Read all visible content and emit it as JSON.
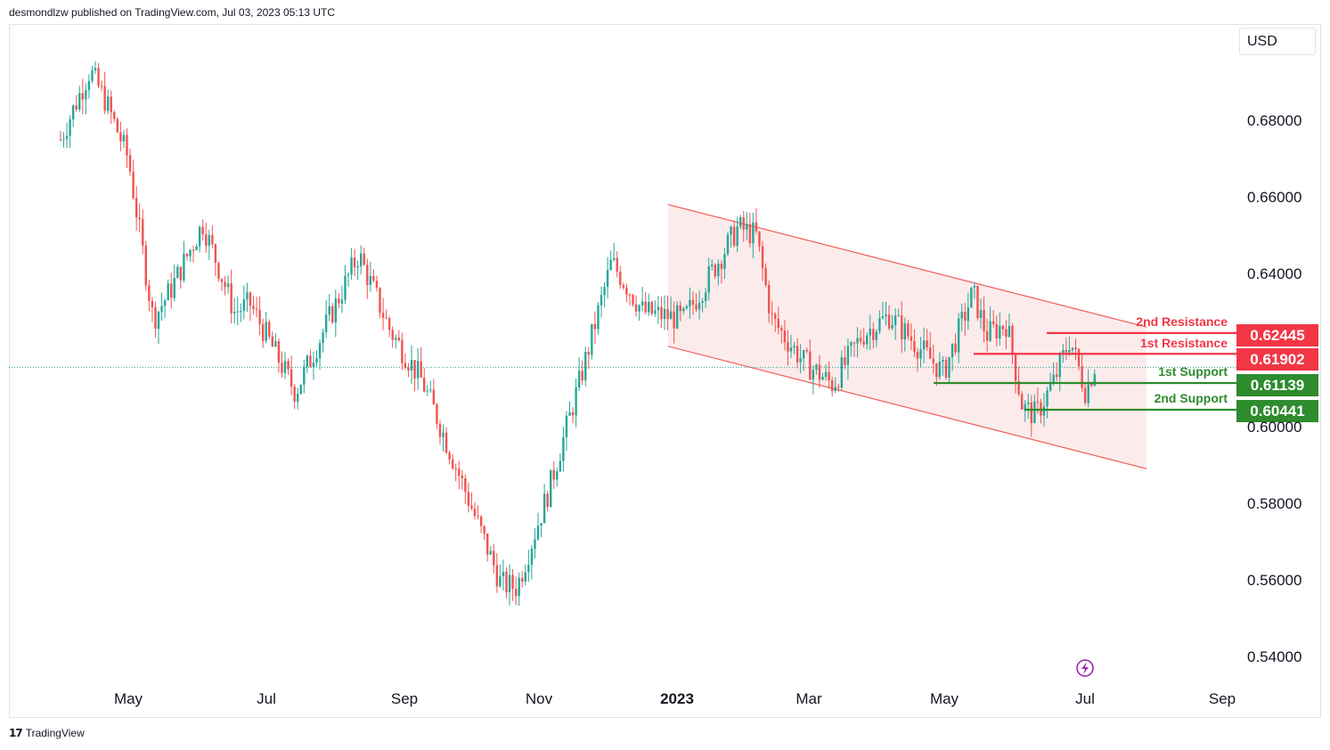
{
  "header": {
    "publisher": "desmondlzw published on TradingView.com, Jul 03, 2023 05:13 UTC"
  },
  "footer": {
    "brand": "TradingView",
    "logo": "tradingview-logo"
  },
  "currency": "USD",
  "colors": {
    "up": "#26a69a",
    "down": "#ef5350",
    "resistance": "#f23645",
    "support": "#2e8b2e",
    "channel_fill": "#fbe3e3",
    "channel_line": "#f25c5c",
    "current_price_line": "#26a69a"
  },
  "chart_data": {
    "type": "candlestick",
    "y_ticks": [
      "0.68000",
      "0.66000",
      "0.64000",
      "0.60000",
      "0.58000",
      "0.56000",
      "0.54000"
    ],
    "x_ticks": [
      {
        "label": "May",
        "bold": false
      },
      {
        "label": "Jul",
        "bold": false
      },
      {
        "label": "Sep",
        "bold": false
      },
      {
        "label": "Nov",
        "bold": false
      },
      {
        "label": "2023",
        "bold": true
      },
      {
        "label": "Mar",
        "bold": false
      },
      {
        "label": "May",
        "bold": false
      },
      {
        "label": "Jul",
        "bold": false
      },
      {
        "label": "Sep",
        "bold": false
      }
    ],
    "levels": [
      {
        "name": "2nd Resistance",
        "value": "0.62445",
        "type": "resistance"
      },
      {
        "name": "1st Resistance",
        "value": "0.61902",
        "type": "resistance"
      },
      {
        "name": "1st Support",
        "value": "0.61139",
        "type": "support"
      },
      {
        "name": "2nd Support",
        "value": "0.60441",
        "type": "support"
      }
    ],
    "price_path": [
      [
        "2022-04-01",
        0.675
      ],
      [
        "2022-04-14",
        0.693
      ],
      [
        "2022-04-21",
        0.685
      ],
      [
        "2022-05-01",
        0.67
      ],
      [
        "2022-05-12",
        0.628
      ],
      [
        "2022-05-20",
        0.636
      ],
      [
        "2022-06-03",
        0.653
      ],
      [
        "2022-06-17",
        0.63
      ],
      [
        "2022-06-24",
        0.632
      ],
      [
        "2022-07-14",
        0.609
      ],
      [
        "2022-08-11",
        0.645
      ],
      [
        "2022-08-25",
        0.625
      ],
      [
        "2022-09-08",
        0.612
      ],
      [
        "2022-09-15",
        0.602
      ],
      [
        "2022-10-13",
        0.559
      ],
      [
        "2022-10-20",
        0.558
      ],
      [
        "2022-11-03",
        0.583
      ],
      [
        "2022-11-17",
        0.612
      ],
      [
        "2022-12-01",
        0.643
      ],
      [
        "2022-12-15",
        0.63
      ],
      [
        "2023-01-02",
        0.628
      ],
      [
        "2023-01-26",
        0.652
      ],
      [
        "2023-02-03",
        0.65
      ],
      [
        "2023-02-10",
        0.628
      ],
      [
        "2023-02-24",
        0.617
      ],
      [
        "2023-03-09",
        0.611
      ],
      [
        "2023-03-22",
        0.624
      ],
      [
        "2023-04-03",
        0.629
      ],
      [
        "2023-04-27",
        0.614
      ],
      [
        "2023-05-10",
        0.635
      ],
      [
        "2023-05-16",
        0.624
      ],
      [
        "2023-05-25",
        0.627
      ],
      [
        "2023-06-01",
        0.605
      ],
      [
        "2023-06-07",
        0.603
      ],
      [
        "2023-06-15",
        0.612
      ],
      [
        "2023-06-22",
        0.623
      ],
      [
        "2023-06-29",
        0.609
      ],
      [
        "2023-07-03",
        0.616
      ]
    ],
    "channel": {
      "upper": [
        [
          "2022-12-26",
          0.658
        ],
        [
          "2023-07-26",
          0.626
        ]
      ],
      "lower": [
        [
          "2022-12-26",
          0.621
        ],
        [
          "2023-07-26",
          0.589
        ]
      ]
    },
    "current_price": 0.6155,
    "annotation_icon": "lightning-icon"
  }
}
